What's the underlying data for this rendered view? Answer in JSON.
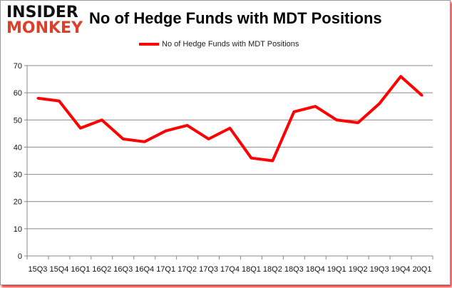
{
  "logo": {
    "line1": "INSIDER",
    "line2": "MONKEY"
  },
  "chart_data": {
    "type": "line",
    "title": "No of Hedge Funds with MDT Positions",
    "xlabel": "",
    "ylabel": "",
    "ylim": [
      0,
      70
    ],
    "yticks": [
      0,
      10,
      20,
      30,
      40,
      50,
      60,
      70
    ],
    "grid": true,
    "legend_position": "top",
    "categories": [
      "15Q3",
      "15Q4",
      "16Q1",
      "16Q2",
      "16Q3",
      "16Q4",
      "17Q1",
      "17Q2",
      "17Q3",
      "17Q4",
      "18Q1",
      "18Q2",
      "18Q3",
      "18Q4",
      "19Q1",
      "19Q2",
      "19Q3",
      "19Q4",
      "20Q1"
    ],
    "series": [
      {
        "name": "No of Hedge Funds with MDT Positions",
        "color": "#ff0000",
        "values": [
          58,
          57,
          47,
          50,
          43,
          42,
          46,
          48,
          43,
          47,
          36,
          35,
          53,
          55,
          50,
          49,
          56,
          66,
          59
        ]
      }
    ]
  }
}
